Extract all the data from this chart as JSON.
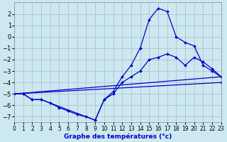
{
  "title": "Graphe des températures (°c)",
  "background_color": "#cce8f0",
  "grid_color": "#aabbcc",
  "line_color": "#0000cc",
  "xlim": [
    0,
    23
  ],
  "ylim": [
    -7.5,
    3.0
  ],
  "yticks": [
    2,
    1,
    0,
    -1,
    -2,
    -3,
    -4,
    -5,
    -6,
    -7
  ],
  "xticks": [
    0,
    1,
    2,
    3,
    4,
    5,
    6,
    7,
    8,
    9,
    10,
    11,
    12,
    13,
    14,
    15,
    16,
    17,
    18,
    19,
    20,
    21,
    22,
    23
  ],
  "curves": [
    {
      "x": [
        0,
        1,
        2,
        3,
        4,
        5,
        6,
        7,
        8,
        9,
        10,
        11,
        12,
        13,
        14,
        15,
        16,
        17,
        18,
        19,
        20,
        21,
        22,
        23
      ],
      "y": [
        -5.0,
        -5.0,
        -5.5,
        -5.5,
        -5.8,
        -6.2,
        -6.5,
        -6.8,
        -7.0,
        -7.3,
        -5.5,
        -4.8,
        -3.5,
        -2.5,
        -1.0,
        1.5,
        2.5,
        2.2,
        0.0,
        -0.5,
        -0.8,
        -2.5,
        -3.0,
        -3.5
      ]
    },
    {
      "x": [
        0,
        1,
        2,
        3,
        9,
        10,
        11,
        12,
        13,
        14,
        15,
        16,
        17,
        18,
        19,
        20,
        21,
        22,
        23
      ],
      "y": [
        -5.0,
        -5.0,
        -5.5,
        -5.5,
        -7.3,
        -5.5,
        -5.0,
        -4.0,
        -3.5,
        -3.0,
        -2.0,
        -1.8,
        -1.5,
        -1.8,
        -2.5,
        -1.8,
        -2.2,
        -2.8,
        -3.5
      ]
    },
    {
      "x": [
        0,
        23
      ],
      "y": [
        -5.0,
        -3.5
      ]
    },
    {
      "x": [
        0,
        23
      ],
      "y": [
        -5.0,
        -4.0
      ]
    }
  ]
}
